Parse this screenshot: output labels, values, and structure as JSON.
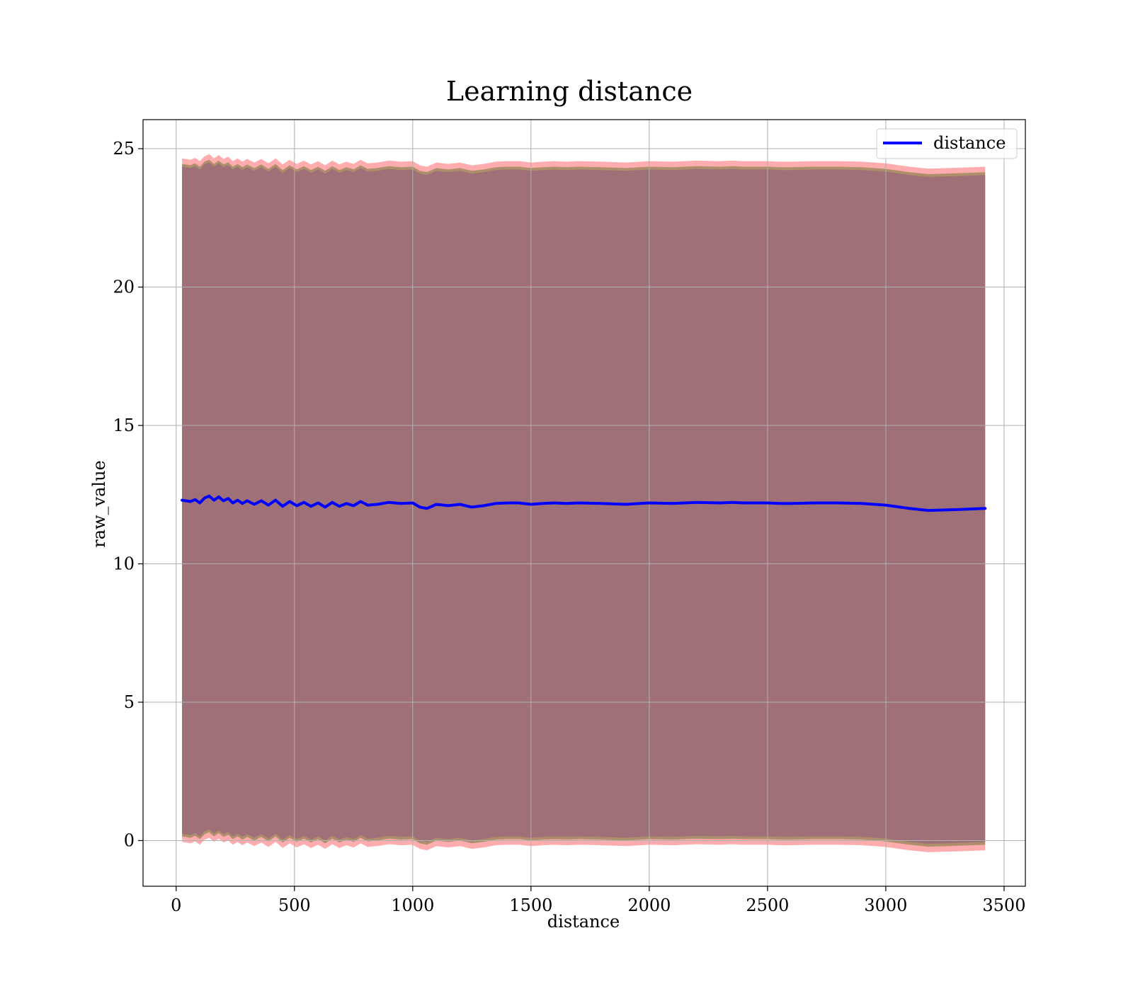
{
  "chart_data": {
    "type": "area",
    "title": "Learning distance",
    "xlabel": "distance",
    "ylabel": "raw_value",
    "xlim": [
      -140,
      3590
    ],
    "ylim": [
      -1.65,
      26.05
    ],
    "xticks": [
      0,
      500,
      1000,
      1500,
      2000,
      2500,
      3000,
      3500
    ],
    "xtick_labels": [
      "0",
      "500",
      "1000",
      "1500",
      "2000",
      "2500",
      "3000",
      "3500"
    ],
    "yticks": [
      0,
      5,
      10,
      15,
      20,
      25
    ],
    "ytick_labels": [
      "0",
      "5",
      "10",
      "15",
      "20",
      "25"
    ],
    "grid": true,
    "legend": {
      "position": "top-right",
      "entries": [
        {
          "label": "distance",
          "color": "#0000ff"
        }
      ]
    },
    "series": [
      {
        "name": "distance",
        "color": "#0000ff",
        "x": [
          25,
          60,
          80,
          100,
          120,
          140,
          160,
          180,
          200,
          220,
          240,
          260,
          280,
          300,
          330,
          360,
          390,
          420,
          450,
          480,
          510,
          540,
          570,
          600,
          630,
          660,
          690,
          720,
          750,
          780,
          810,
          850,
          900,
          950,
          1000,
          1030,
          1060,
          1100,
          1150,
          1200,
          1250,
          1300,
          1350,
          1400,
          1450,
          1500,
          1550,
          1600,
          1650,
          1700,
          1800,
          1900,
          2000,
          2100,
          2200,
          2300,
          2350,
          2400,
          2500,
          2550,
          2600,
          2700,
          2800,
          2900,
          3000,
          3100,
          3180,
          3300,
          3420
        ],
        "y": [
          12.3,
          12.25,
          12.32,
          12.2,
          12.38,
          12.45,
          12.3,
          12.42,
          12.28,
          12.36,
          12.2,
          12.3,
          12.18,
          12.28,
          12.15,
          12.28,
          12.12,
          12.3,
          12.08,
          12.25,
          12.1,
          12.22,
          12.08,
          12.2,
          12.05,
          12.22,
          12.08,
          12.18,
          12.1,
          12.25,
          12.12,
          12.15,
          12.22,
          12.18,
          12.2,
          12.05,
          12.0,
          12.15,
          12.1,
          12.15,
          12.05,
          12.1,
          12.18,
          12.2,
          12.2,
          12.15,
          12.18,
          12.2,
          12.18,
          12.2,
          12.18,
          12.15,
          12.2,
          12.18,
          12.22,
          12.2,
          12.22,
          12.2,
          12.2,
          12.18,
          12.18,
          12.2,
          12.2,
          12.18,
          12.12,
          12.0,
          11.93,
          11.96,
          12.0
        ],
        "band_colors": [
          "#a07078",
          "#a08a60",
          "#ff9ea0"
        ],
        "band_half_widths": [
          12.05,
          12.15,
          12.35
        ]
      }
    ]
  }
}
